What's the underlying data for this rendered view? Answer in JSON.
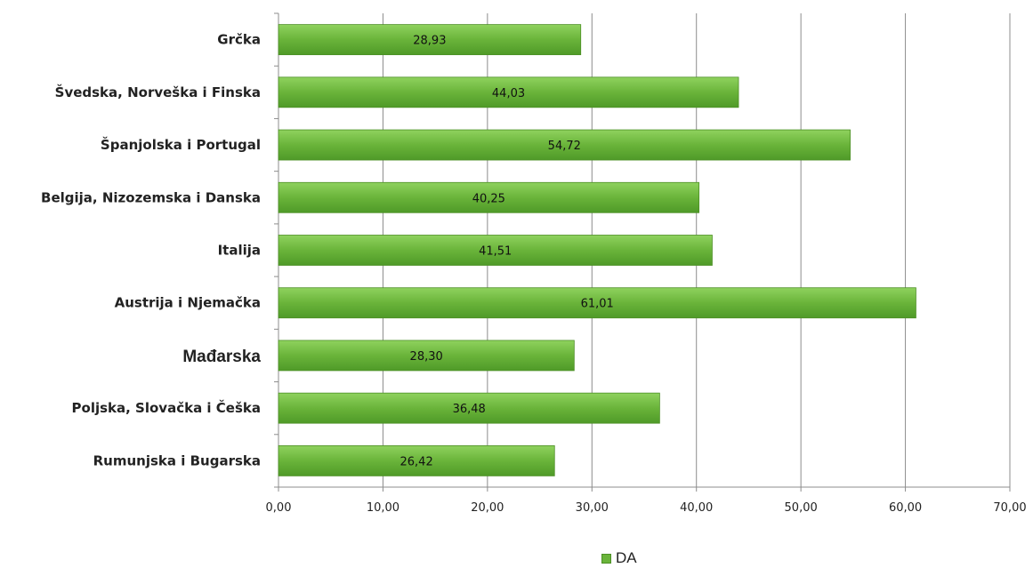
{
  "chart_data": {
    "type": "bar",
    "orientation": "horizontal",
    "categories": [
      "Grčka",
      "Švedska, Norveška i Finska",
      "Španjolska i Portugal",
      "Belgija, Nizozemska i Danska",
      "Italija",
      "Austrija i Njemačka",
      "Mađarska",
      "Poljska, Slovačka i Češka",
      "Rumunjska i Bugarska"
    ],
    "series": [
      {
        "name": "DA",
        "values": [
          28.93,
          44.03,
          54.72,
          40.25,
          41.51,
          61.01,
          28.3,
          36.48,
          26.42
        ],
        "labels": [
          "28,93",
          "44,03",
          "54,72",
          "40,25",
          "41,51",
          "61,01",
          "28,30",
          "36,48",
          "26,42"
        ],
        "color": "#6ab43a"
      }
    ],
    "xlim": [
      0,
      70
    ],
    "xticks": [
      0,
      10,
      20,
      30,
      40,
      50,
      60,
      70
    ],
    "xtick_labels": [
      "0,00",
      "10,00",
      "20,00",
      "30,00",
      "40,00",
      "50,00",
      "60,00",
      "70,00"
    ],
    "grid": true,
    "legend_position": "bottom",
    "emphasized_category": "Mađarska"
  },
  "legend": {
    "label": "DA"
  }
}
